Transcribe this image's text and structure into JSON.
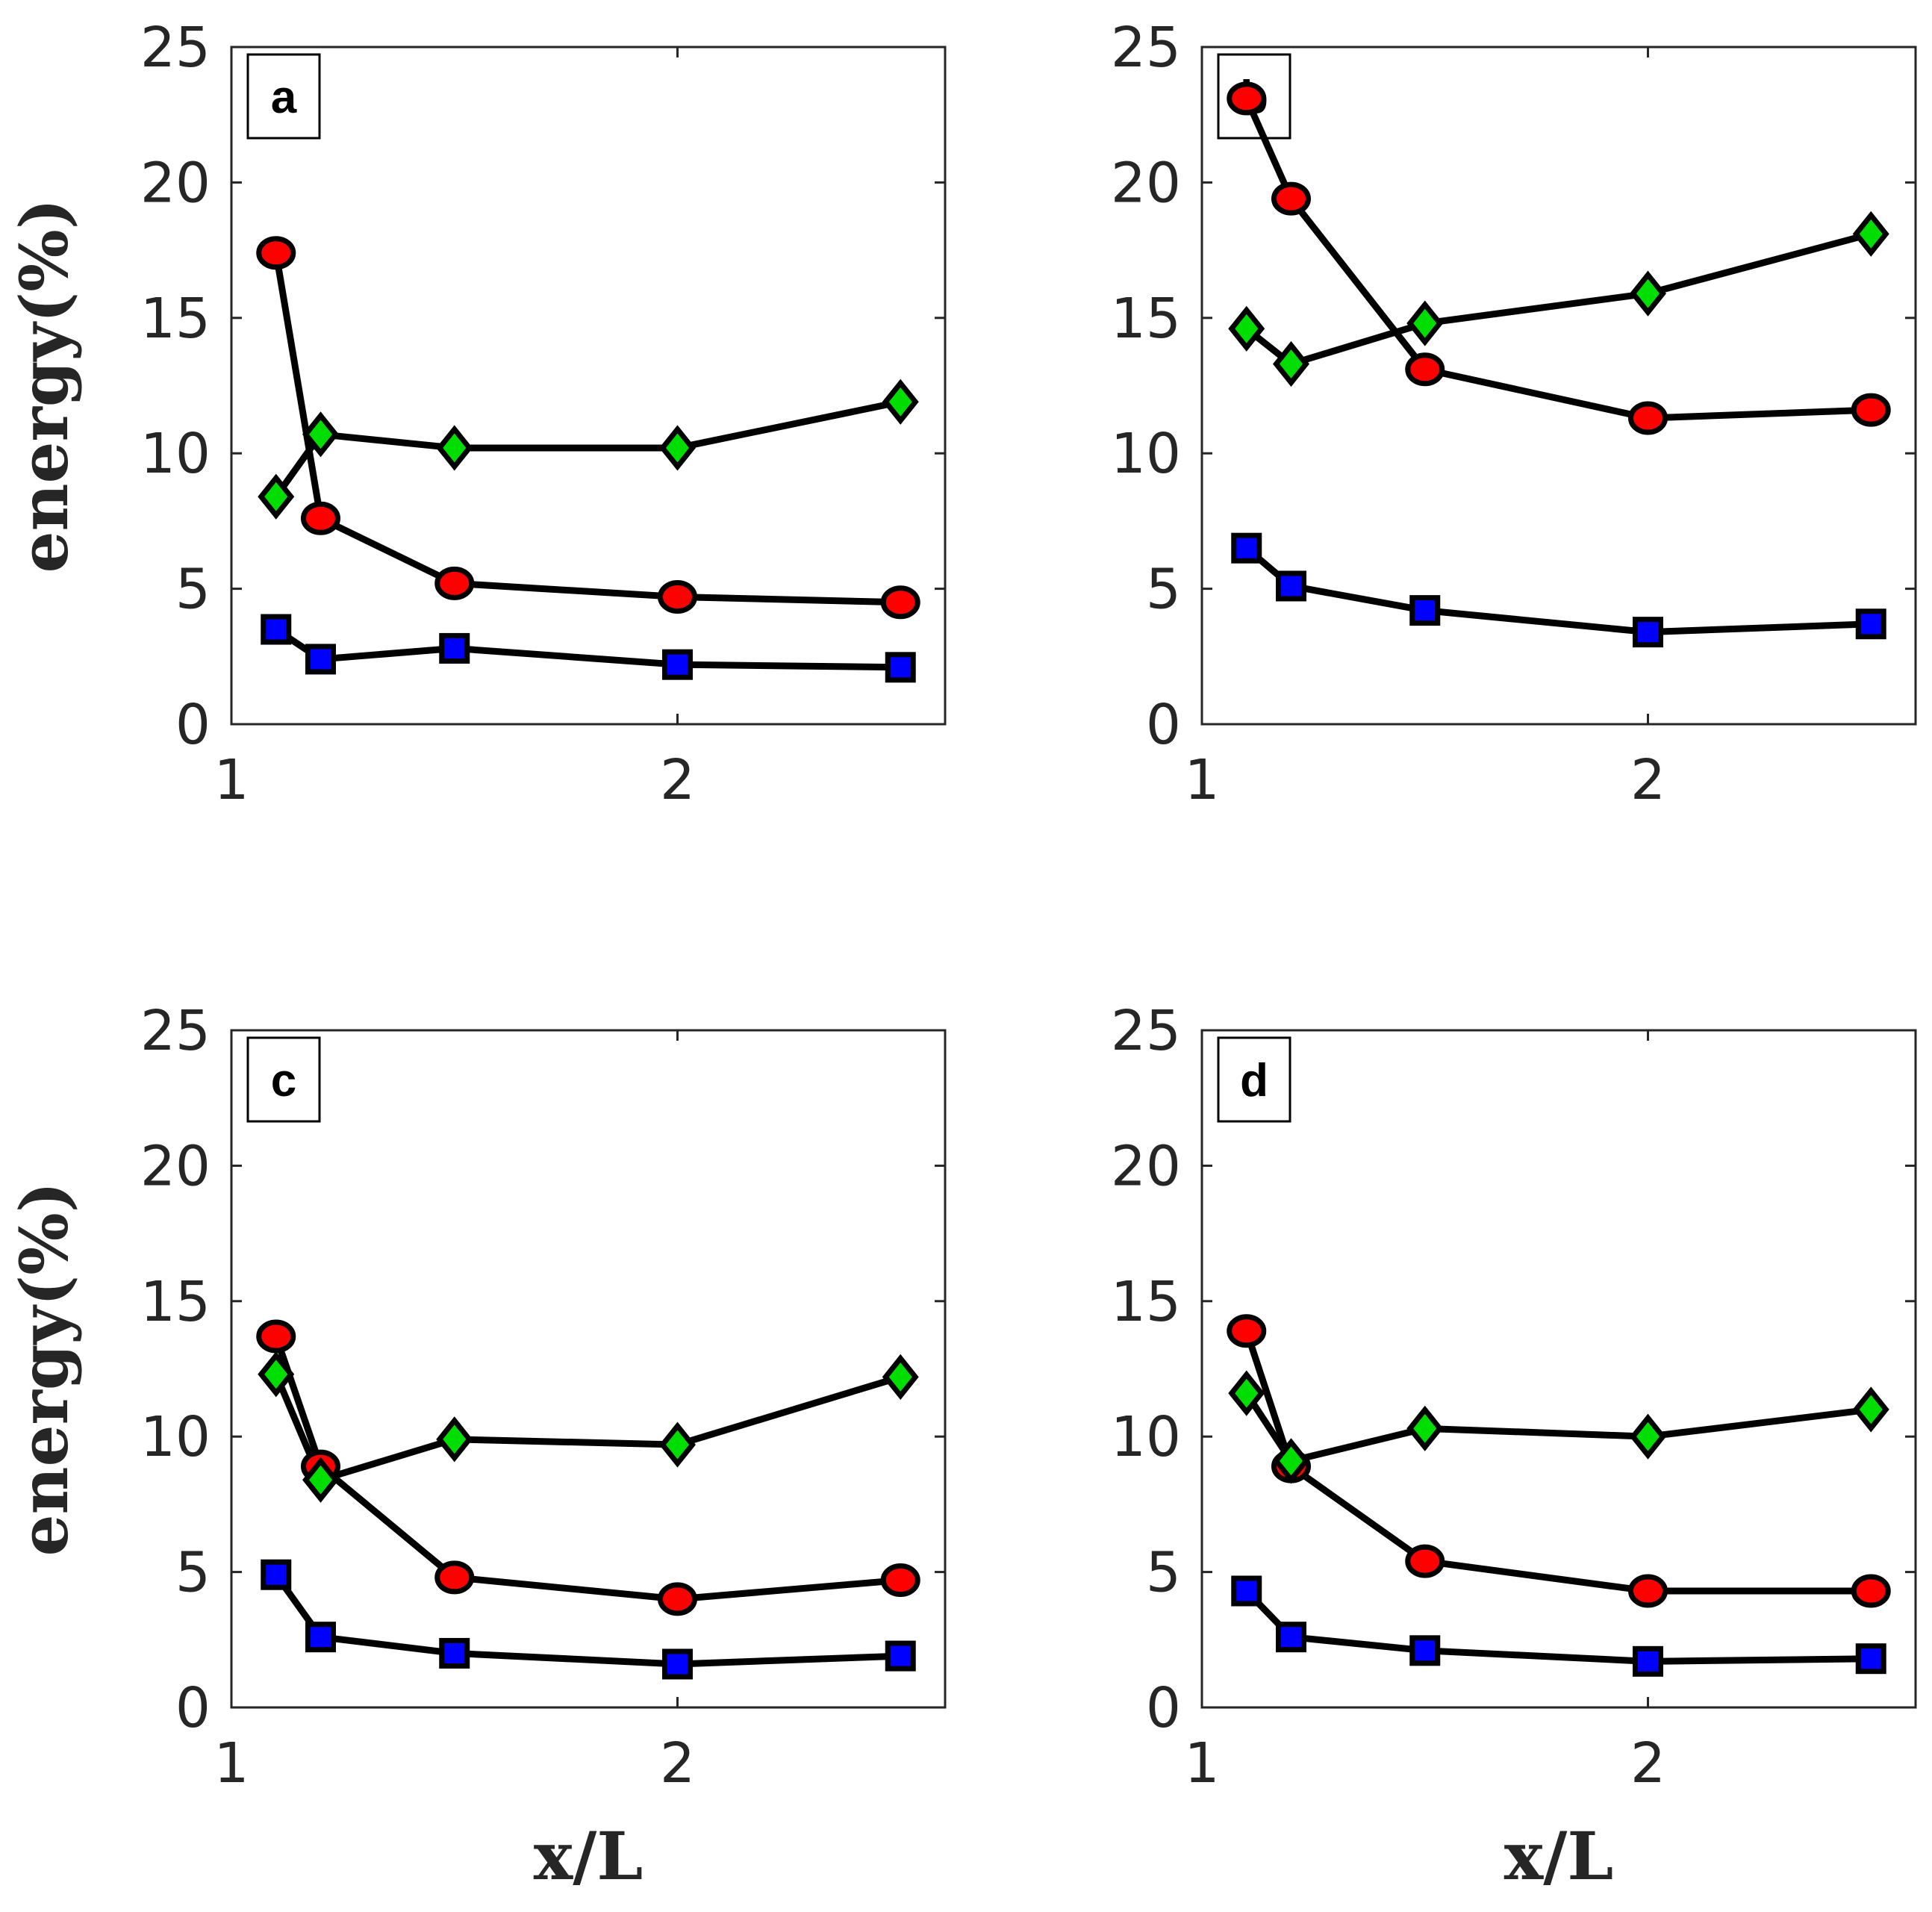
{
  "chart_data": [
    {
      "type": "line",
      "panel_label": "a",
      "xlabel": "",
      "ylabel": "energy(%)",
      "xlim": [
        1,
        2.6
      ],
      "ylim": [
        0,
        25
      ],
      "xticks": [
        "1",
        "2"
      ],
      "yticks": [
        "0",
        "5",
        "10",
        "15",
        "20",
        "25"
      ],
      "x": [
        1.1,
        1.2,
        1.5,
        2.0,
        2.5
      ],
      "series": [
        {
          "name": "red-circle",
          "marker": "circle",
          "color": "#ff0000",
          "values": [
            17.4,
            7.6,
            5.2,
            4.7,
            4.5
          ]
        },
        {
          "name": "green-diamond",
          "marker": "diamond",
          "color": "#00dd00",
          "values": [
            8.4,
            10.7,
            10.2,
            10.2,
            11.9
          ]
        },
        {
          "name": "blue-square",
          "marker": "square",
          "color": "#0000ff",
          "values": [
            3.5,
            2.4,
            2.8,
            2.2,
            2.1
          ]
        }
      ]
    },
    {
      "type": "line",
      "panel_label": "b",
      "xlabel": "",
      "ylabel": "",
      "xlim": [
        1,
        2.6
      ],
      "ylim": [
        0,
        25
      ],
      "xticks": [
        "1",
        "2"
      ],
      "yticks": [
        "0",
        "5",
        "10",
        "15",
        "20",
        "25"
      ],
      "x": [
        1.1,
        1.2,
        1.5,
        2.0,
        2.5
      ],
      "series": [
        {
          "name": "red-circle",
          "marker": "circle",
          "color": "#ff0000",
          "values": [
            23.1,
            19.4,
            13.1,
            11.3,
            11.6
          ]
        },
        {
          "name": "green-diamond",
          "marker": "diamond",
          "color": "#00dd00",
          "values": [
            14.6,
            13.3,
            14.8,
            15.9,
            18.1
          ]
        },
        {
          "name": "blue-square",
          "marker": "square",
          "color": "#0000ff",
          "values": [
            6.5,
            5.1,
            4.2,
            3.4,
            3.7
          ]
        }
      ]
    },
    {
      "type": "line",
      "panel_label": "c",
      "xlabel": "x/L",
      "ylabel": "energy(%)",
      "xlim": [
        1,
        2.6
      ],
      "ylim": [
        0,
        25
      ],
      "xticks": [
        "1",
        "2"
      ],
      "yticks": [
        "0",
        "5",
        "10",
        "15",
        "20",
        "25"
      ],
      "x": [
        1.1,
        1.2,
        1.5,
        2.0,
        2.5
      ],
      "series": [
        {
          "name": "red-circle",
          "marker": "circle",
          "color": "#ff0000",
          "values": [
            13.7,
            8.9,
            4.8,
            4.0,
            4.7
          ]
        },
        {
          "name": "green-diamond",
          "marker": "diamond",
          "color": "#00dd00",
          "values": [
            12.3,
            8.4,
            9.9,
            9.7,
            12.2
          ]
        },
        {
          "name": "blue-square",
          "marker": "square",
          "color": "#0000ff",
          "values": [
            4.9,
            2.6,
            2.0,
            1.6,
            1.9
          ]
        }
      ]
    },
    {
      "type": "line",
      "panel_label": "d",
      "xlabel": "x/L",
      "ylabel": "",
      "xlim": [
        1,
        2.6
      ],
      "ylim": [
        0,
        25
      ],
      "xticks": [
        "1",
        "2"
      ],
      "yticks": [
        "0",
        "5",
        "10",
        "15",
        "20",
        "25"
      ],
      "x": [
        1.1,
        1.2,
        1.5,
        2.0,
        2.5
      ],
      "series": [
        {
          "name": "red-circle",
          "marker": "circle",
          "color": "#ff0000",
          "values": [
            13.9,
            8.9,
            5.4,
            4.3,
            4.3
          ]
        },
        {
          "name": "green-diamond",
          "marker": "diamond",
          "color": "#00dd00",
          "values": [
            11.6,
            9.1,
            10.3,
            10.0,
            11.0
          ]
        },
        {
          "name": "blue-square",
          "marker": "square",
          "color": "#0000ff",
          "values": [
            4.3,
            2.6,
            2.1,
            1.7,
            1.8
          ]
        }
      ]
    }
  ]
}
